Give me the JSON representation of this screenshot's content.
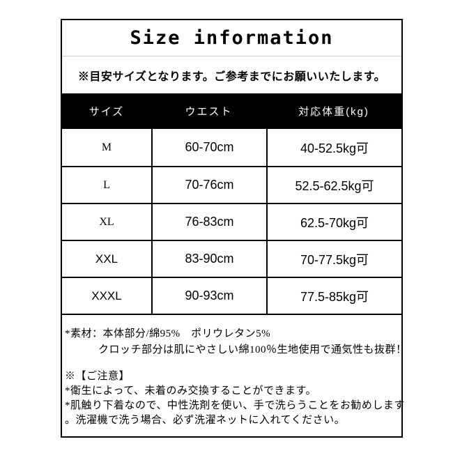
{
  "title": "Size information",
  "notice": "※目安サイズとなります。ご参考までにお願いいたします。",
  "table": {
    "headers": [
      "サイズ",
      "ウエスト",
      "対応体重(kg)"
    ],
    "rows": [
      {
        "size": "M",
        "waist": "60-70cm",
        "weight": "40-52.5kg可"
      },
      {
        "size": "L",
        "waist": "70-76cm",
        "weight": "52.5-62.5kg可"
      },
      {
        "size": "XL",
        "waist": "76-83cm",
        "weight": "62.5-70kg可"
      },
      {
        "size": "XXL",
        "waist": "83-90cm",
        "weight": "70-77.5kg可"
      },
      {
        "size": "XXXL",
        "waist": "90-93cm",
        "weight": "77.5-85kg可"
      }
    ]
  },
  "material": {
    "line1": "*素材：本体部分/綿95%　ポリウレタン5%",
    "line2": "クロッチ部分は肌にやさしい綿100％生地使用で通気性も抜群！"
  },
  "caution": {
    "heading": "※【ご注意】",
    "line1": "*衛生によって、未着のみ交換することができます。",
    "line2": "*肌触り下着なので、中性洗剤を使い、手で洗らうことをお勧めします",
    "line3": "。洗濯機で洗う場合、必ず洗濯ネットに入れてください。"
  },
  "colors": {
    "header_bg": "#000000",
    "header_text": "#ffffff",
    "body_text": "#000000",
    "divider": "#cccccc",
    "background": "#ffffff"
  }
}
